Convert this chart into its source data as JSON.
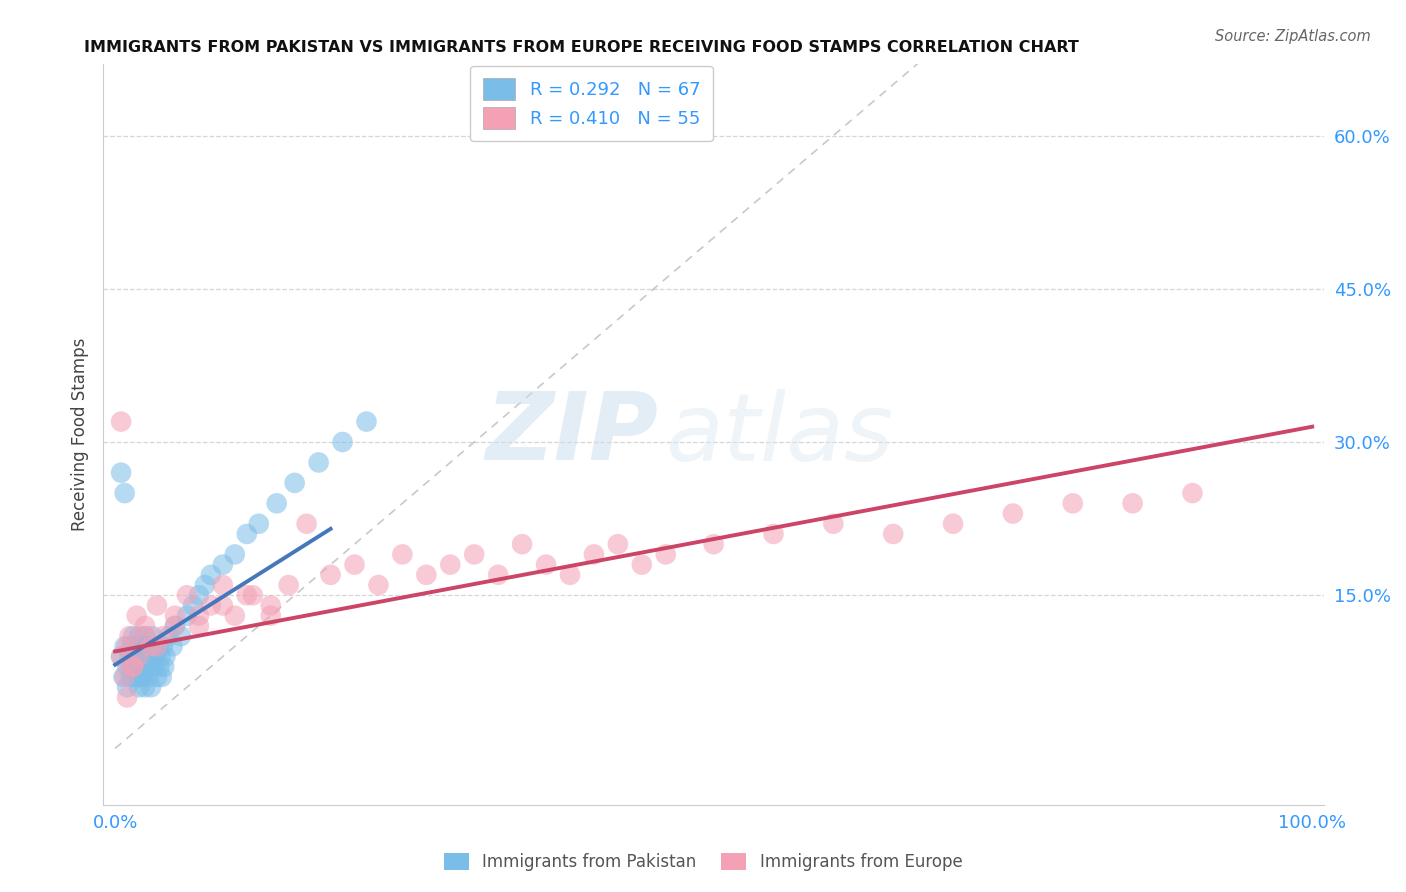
{
  "title": "IMMIGRANTS FROM PAKISTAN VS IMMIGRANTS FROM EUROPE RECEIVING FOOD STAMPS CORRELATION CHART",
  "source": "Source: ZipAtlas.com",
  "ylabel": "Receiving Food Stamps",
  "yticks_labels": [
    "15.0%",
    "30.0%",
    "45.0%",
    "60.0%"
  ],
  "ytick_vals": [
    0.15,
    0.3,
    0.45,
    0.6
  ],
  "xlim": [
    -0.01,
    1.01
  ],
  "ylim": [
    -0.055,
    0.67
  ],
  "legend_r1": "R = 0.292",
  "legend_n1": "N = 67",
  "legend_r2": "R = 0.410",
  "legend_n2": "N = 55",
  "series1_label": "Immigrants from Pakistan",
  "series2_label": "Immigrants from Europe",
  "color1": "#7abde8",
  "color2": "#f4a0b5",
  "trend1_color": "#4477bb",
  "trend2_color": "#cc4466",
  "diagonal_color": "#bbbbbb",
  "background": "#ffffff",
  "title_color": "#111111",
  "axis_color": "#3399ff",
  "watermark_zip_color": "#c8dff0",
  "watermark_atlas_color": "#c8dff0",
  "scatter1_x": [
    0.005,
    0.007,
    0.008,
    0.01,
    0.01,
    0.012,
    0.013,
    0.014,
    0.015,
    0.015,
    0.016,
    0.017,
    0.018,
    0.018,
    0.019,
    0.02,
    0.02,
    0.02,
    0.021,
    0.021,
    0.022,
    0.022,
    0.023,
    0.023,
    0.024,
    0.025,
    0.025,
    0.025,
    0.026,
    0.027,
    0.028,
    0.028,
    0.029,
    0.03,
    0.03,
    0.031,
    0.032,
    0.033,
    0.034,
    0.035,
    0.036,
    0.037,
    0.038,
    0.039,
    0.04,
    0.041,
    0.042,
    0.045,
    0.048,
    0.05,
    0.055,
    0.06,
    0.065,
    0.07,
    0.075,
    0.08,
    0.09,
    0.1,
    0.11,
    0.12,
    0.135,
    0.15,
    0.17,
    0.19,
    0.21,
    0.005,
    0.008
  ],
  "scatter1_y": [
    0.09,
    0.07,
    0.1,
    0.08,
    0.06,
    0.09,
    0.07,
    0.1,
    0.08,
    0.11,
    0.09,
    0.07,
    0.1,
    0.08,
    0.09,
    0.06,
    0.07,
    0.11,
    0.08,
    0.1,
    0.09,
    0.07,
    0.1,
    0.08,
    0.09,
    0.06,
    0.11,
    0.08,
    0.1,
    0.09,
    0.07,
    0.1,
    0.08,
    0.09,
    0.06,
    0.11,
    0.08,
    0.1,
    0.09,
    0.07,
    0.1,
    0.08,
    0.09,
    0.07,
    0.1,
    0.08,
    0.09,
    0.11,
    0.1,
    0.12,
    0.11,
    0.13,
    0.14,
    0.15,
    0.16,
    0.17,
    0.18,
    0.19,
    0.21,
    0.22,
    0.24,
    0.26,
    0.28,
    0.3,
    0.32,
    0.27,
    0.25
  ],
  "scatter2_x": [
    0.005,
    0.008,
    0.01,
    0.012,
    0.015,
    0.018,
    0.02,
    0.025,
    0.03,
    0.035,
    0.04,
    0.05,
    0.06,
    0.07,
    0.08,
    0.09,
    0.1,
    0.115,
    0.13,
    0.145,
    0.16,
    0.18,
    0.2,
    0.22,
    0.24,
    0.26,
    0.28,
    0.3,
    0.32,
    0.34,
    0.36,
    0.38,
    0.4,
    0.42,
    0.44,
    0.46,
    0.5,
    0.55,
    0.6,
    0.65,
    0.7,
    0.75,
    0.8,
    0.85,
    0.9,
    0.015,
    0.025,
    0.035,
    0.05,
    0.07,
    0.09,
    0.11,
    0.13,
    0.005,
    0.01
  ],
  "scatter2_y": [
    0.09,
    0.07,
    0.1,
    0.11,
    0.08,
    0.13,
    0.09,
    0.12,
    0.1,
    0.14,
    0.11,
    0.12,
    0.15,
    0.13,
    0.14,
    0.16,
    0.13,
    0.15,
    0.14,
    0.16,
    0.22,
    0.17,
    0.18,
    0.16,
    0.19,
    0.17,
    0.18,
    0.19,
    0.17,
    0.2,
    0.18,
    0.17,
    0.19,
    0.2,
    0.18,
    0.19,
    0.2,
    0.21,
    0.22,
    0.21,
    0.22,
    0.23,
    0.24,
    0.24,
    0.25,
    0.08,
    0.11,
    0.1,
    0.13,
    0.12,
    0.14,
    0.15,
    0.13,
    0.32,
    0.05
  ],
  "trend1_x": [
    0.0,
    0.18
  ],
  "trend1_y": [
    0.082,
    0.215
  ],
  "trend2_x": [
    0.0,
    1.0
  ],
  "trend2_y": [
    0.095,
    0.315
  ]
}
